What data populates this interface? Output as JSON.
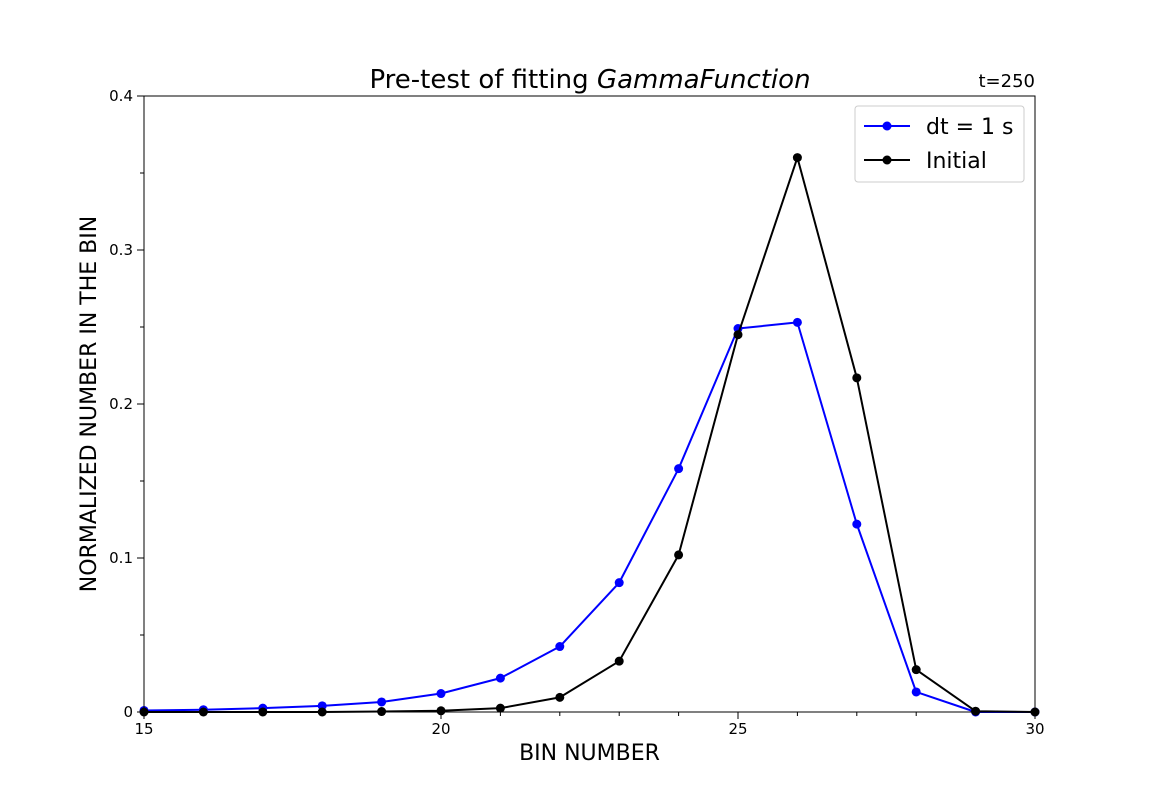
{
  "chart_data": {
    "type": "line",
    "title": "Pre-test of fitting ",
    "title_italic": "GammaFunction",
    "annotation": "t=250",
    "xlabel": "BIN NUMBER",
    "ylabel": "NORMALIZED NUMBER IN THE BIN",
    "xlim": [
      15,
      30
    ],
    "ylim": [
      0,
      0.4
    ],
    "x_ticks": [
      15,
      16,
      17,
      18,
      19,
      20,
      21,
      22,
      23,
      24,
      25,
      26,
      27,
      28,
      29,
      30
    ],
    "x_tick_labels": [
      {
        "value": 15,
        "label": "15"
      },
      {
        "value": 20,
        "label": "20"
      },
      {
        "value": 25,
        "label": "25"
      },
      {
        "value": 30,
        "label": "30"
      }
    ],
    "y_ticks": [
      0,
      0.05,
      0.1,
      0.15,
      0.2,
      0.25,
      0.3,
      0.35,
      0.4
    ],
    "y_tick_labels": [
      {
        "value": 0,
        "label": "0"
      },
      {
        "value": 0.1,
        "label": "0.1"
      },
      {
        "value": 0.2,
        "label": "0.2"
      },
      {
        "value": 0.3,
        "label": "0.3"
      },
      {
        "value": 0.4,
        "label": "0.4"
      }
    ],
    "grid": false,
    "legend_position": "top-right",
    "x": [
      15,
      16,
      17,
      18,
      19,
      20,
      21,
      22,
      23,
      24,
      25,
      26,
      27,
      28,
      29,
      30
    ],
    "series": [
      {
        "name": "dt = 1 s",
        "color": "#0000ff",
        "values": [
          0.001,
          0.0015,
          0.0025,
          0.004,
          0.0065,
          0.012,
          0.022,
          0.0425,
          0.084,
          0.158,
          0.249,
          0.253,
          0.122,
          0.013,
          0.0,
          0.0
        ]
      },
      {
        "name": "Initial",
        "color": "#000000",
        "values": [
          0.0,
          0.0,
          0.0,
          0.0,
          0.0003,
          0.0008,
          0.0025,
          0.0095,
          0.033,
          0.102,
          0.245,
          0.36,
          0.217,
          0.0275,
          0.0005,
          0.0
        ]
      }
    ]
  }
}
